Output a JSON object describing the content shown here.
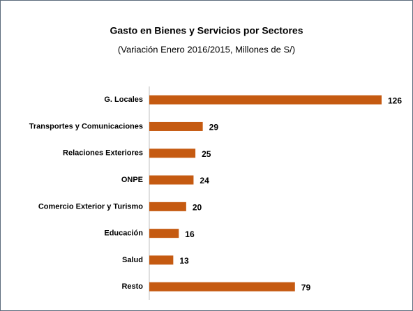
{
  "chart_data": {
    "type": "bar",
    "orientation": "horizontal",
    "title": "Gasto en Bienes y Servicios por Sectores",
    "subtitle": "(Variación Enero 2016/2015, Millones de S/)",
    "categories": [
      "G. Locales",
      "Transportes y Comunicaciones",
      "Relaciones Exteriores",
      "ONPE",
      "Comercio Exterior y Turismo",
      "Educación",
      "Salud",
      "Resto"
    ],
    "values": [
      126,
      29,
      25,
      24,
      20,
      16,
      13,
      79
    ],
    "color": "#c55a11"
  }
}
